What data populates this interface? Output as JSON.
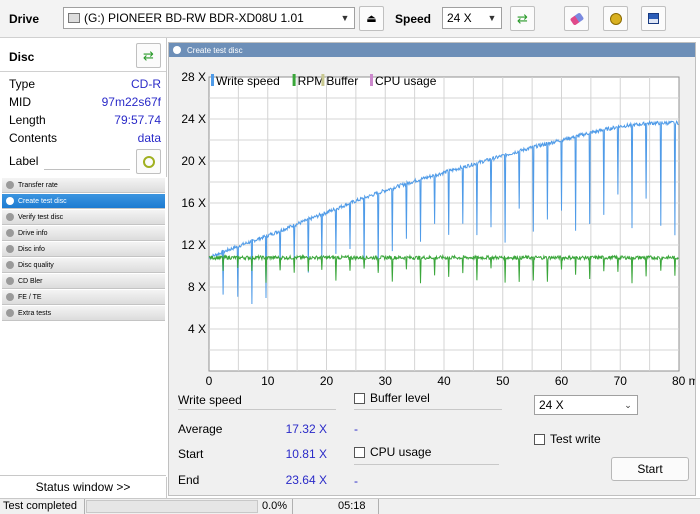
{
  "toolbar": {
    "drive_label": "Drive",
    "drive_value": "(G:)   PIONEER BD-RW   BDR-XD08U 1.01",
    "speed_label": "Speed",
    "speed_value": "24 X"
  },
  "disc": {
    "title": "Disc",
    "rows": [
      {
        "key": "Type",
        "value": "CD-R"
      },
      {
        "key": "MID",
        "value": "97m22s67f"
      },
      {
        "key": "Length",
        "value": "79:57.74"
      },
      {
        "key": "Contents",
        "value": "data"
      }
    ],
    "label_key": "Label"
  },
  "nav": {
    "items": [
      "Transfer rate",
      "Create test disc",
      "Verify test disc",
      "Drive info",
      "Disc info",
      "Disc quality",
      "CD Bler",
      "FE / TE",
      "Extra tests"
    ],
    "active_index": 1
  },
  "status_window_button": "Status window >>",
  "panel": {
    "title": "Create test disc"
  },
  "chart_data": {
    "type": "line",
    "legend": [
      "Write speed",
      "RPM",
      "Buffer",
      "CPU usage"
    ],
    "legend_colors": [
      "#4f9be8",
      "#3aa63a",
      "#c8c890",
      "#cc88cc"
    ],
    "x_ticks": [
      "0",
      "10",
      "20",
      "30",
      "40",
      "50",
      "60",
      "70",
      "80 min"
    ],
    "y_ticks": [
      "4 X",
      "8 X",
      "12 X",
      "16 X",
      "20 X",
      "24 X",
      "28 X"
    ],
    "xlim": [
      0,
      80
    ],
    "ylim": [
      0,
      28
    ],
    "grid": true,
    "series": [
      {
        "name": "Write speed",
        "color": "#4f9be8",
        "x": [
          0,
          5,
          10,
          15,
          20,
          25,
          30,
          35,
          40,
          45,
          50,
          55,
          60,
          65,
          70,
          75,
          79.95
        ],
        "y": [
          10.81,
          11.9,
          12.9,
          14.0,
          15.1,
          16.2,
          17.2,
          18.1,
          18.9,
          19.7,
          20.5,
          21.3,
          22.0,
          22.7,
          23.3,
          23.6,
          23.64
        ]
      },
      {
        "name": "RPM",
        "color": "#3aa63a",
        "x": [
          0,
          10,
          20,
          30,
          40,
          50,
          60,
          70,
          79.95
        ],
        "y": [
          10.8,
          10.8,
          10.8,
          10.8,
          10.8,
          10.8,
          10.8,
          10.8,
          10.8
        ]
      }
    ]
  },
  "stats": {
    "heading": "Write speed",
    "average_label": "Average",
    "average_value": "17.32 X",
    "start_label": "Start",
    "start_value": "10.81 X",
    "end_label": "End",
    "end_value": "23.64 X",
    "dash": "-"
  },
  "options": {
    "buffer_level": "Buffer level",
    "cpu_usage": "CPU usage",
    "speed_select": "24 X",
    "test_write": "Test write",
    "start_button": "Start"
  },
  "status": {
    "text": "Test completed",
    "progress_fraction": 0.0,
    "percent": "0.0%",
    "time": "05:18"
  }
}
